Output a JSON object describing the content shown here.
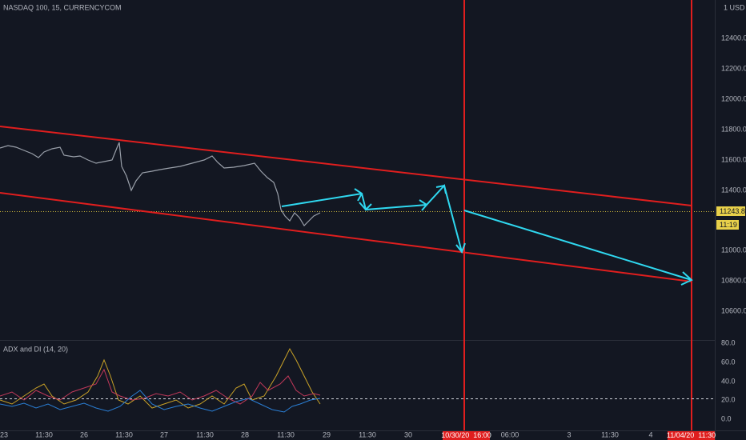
{
  "header": {
    "title": "NASDAQ 100, 15, CURRENCYCOM"
  },
  "price_axis": {
    "currency": "1 USD",
    "labels": [
      "12400.0",
      "12200.0",
      "12000.0",
      "11800.0",
      "11600.0",
      "11400.0",
      "11000.0",
      "10800.0",
      "10600.0"
    ]
  },
  "price_tag": {
    "price": "11243.8",
    "countdown": "11:19"
  },
  "indicator": {
    "title": "ADX and DI (14, 20)",
    "axis_labels": [
      "80.0",
      "60.0",
      "40.0",
      "20.0",
      "0.0"
    ]
  },
  "time_axis": {
    "labels": [
      "23",
      "11:30",
      "26",
      "11:30",
      "27",
      "11:30",
      "28",
      "11:30",
      "29",
      "11:30",
      "30",
      "06:00",
      "3",
      "11:30",
      "4"
    ],
    "markers": [
      "10/30/20  16:00",
      "11/04/20  11:30"
    ]
  }
}
